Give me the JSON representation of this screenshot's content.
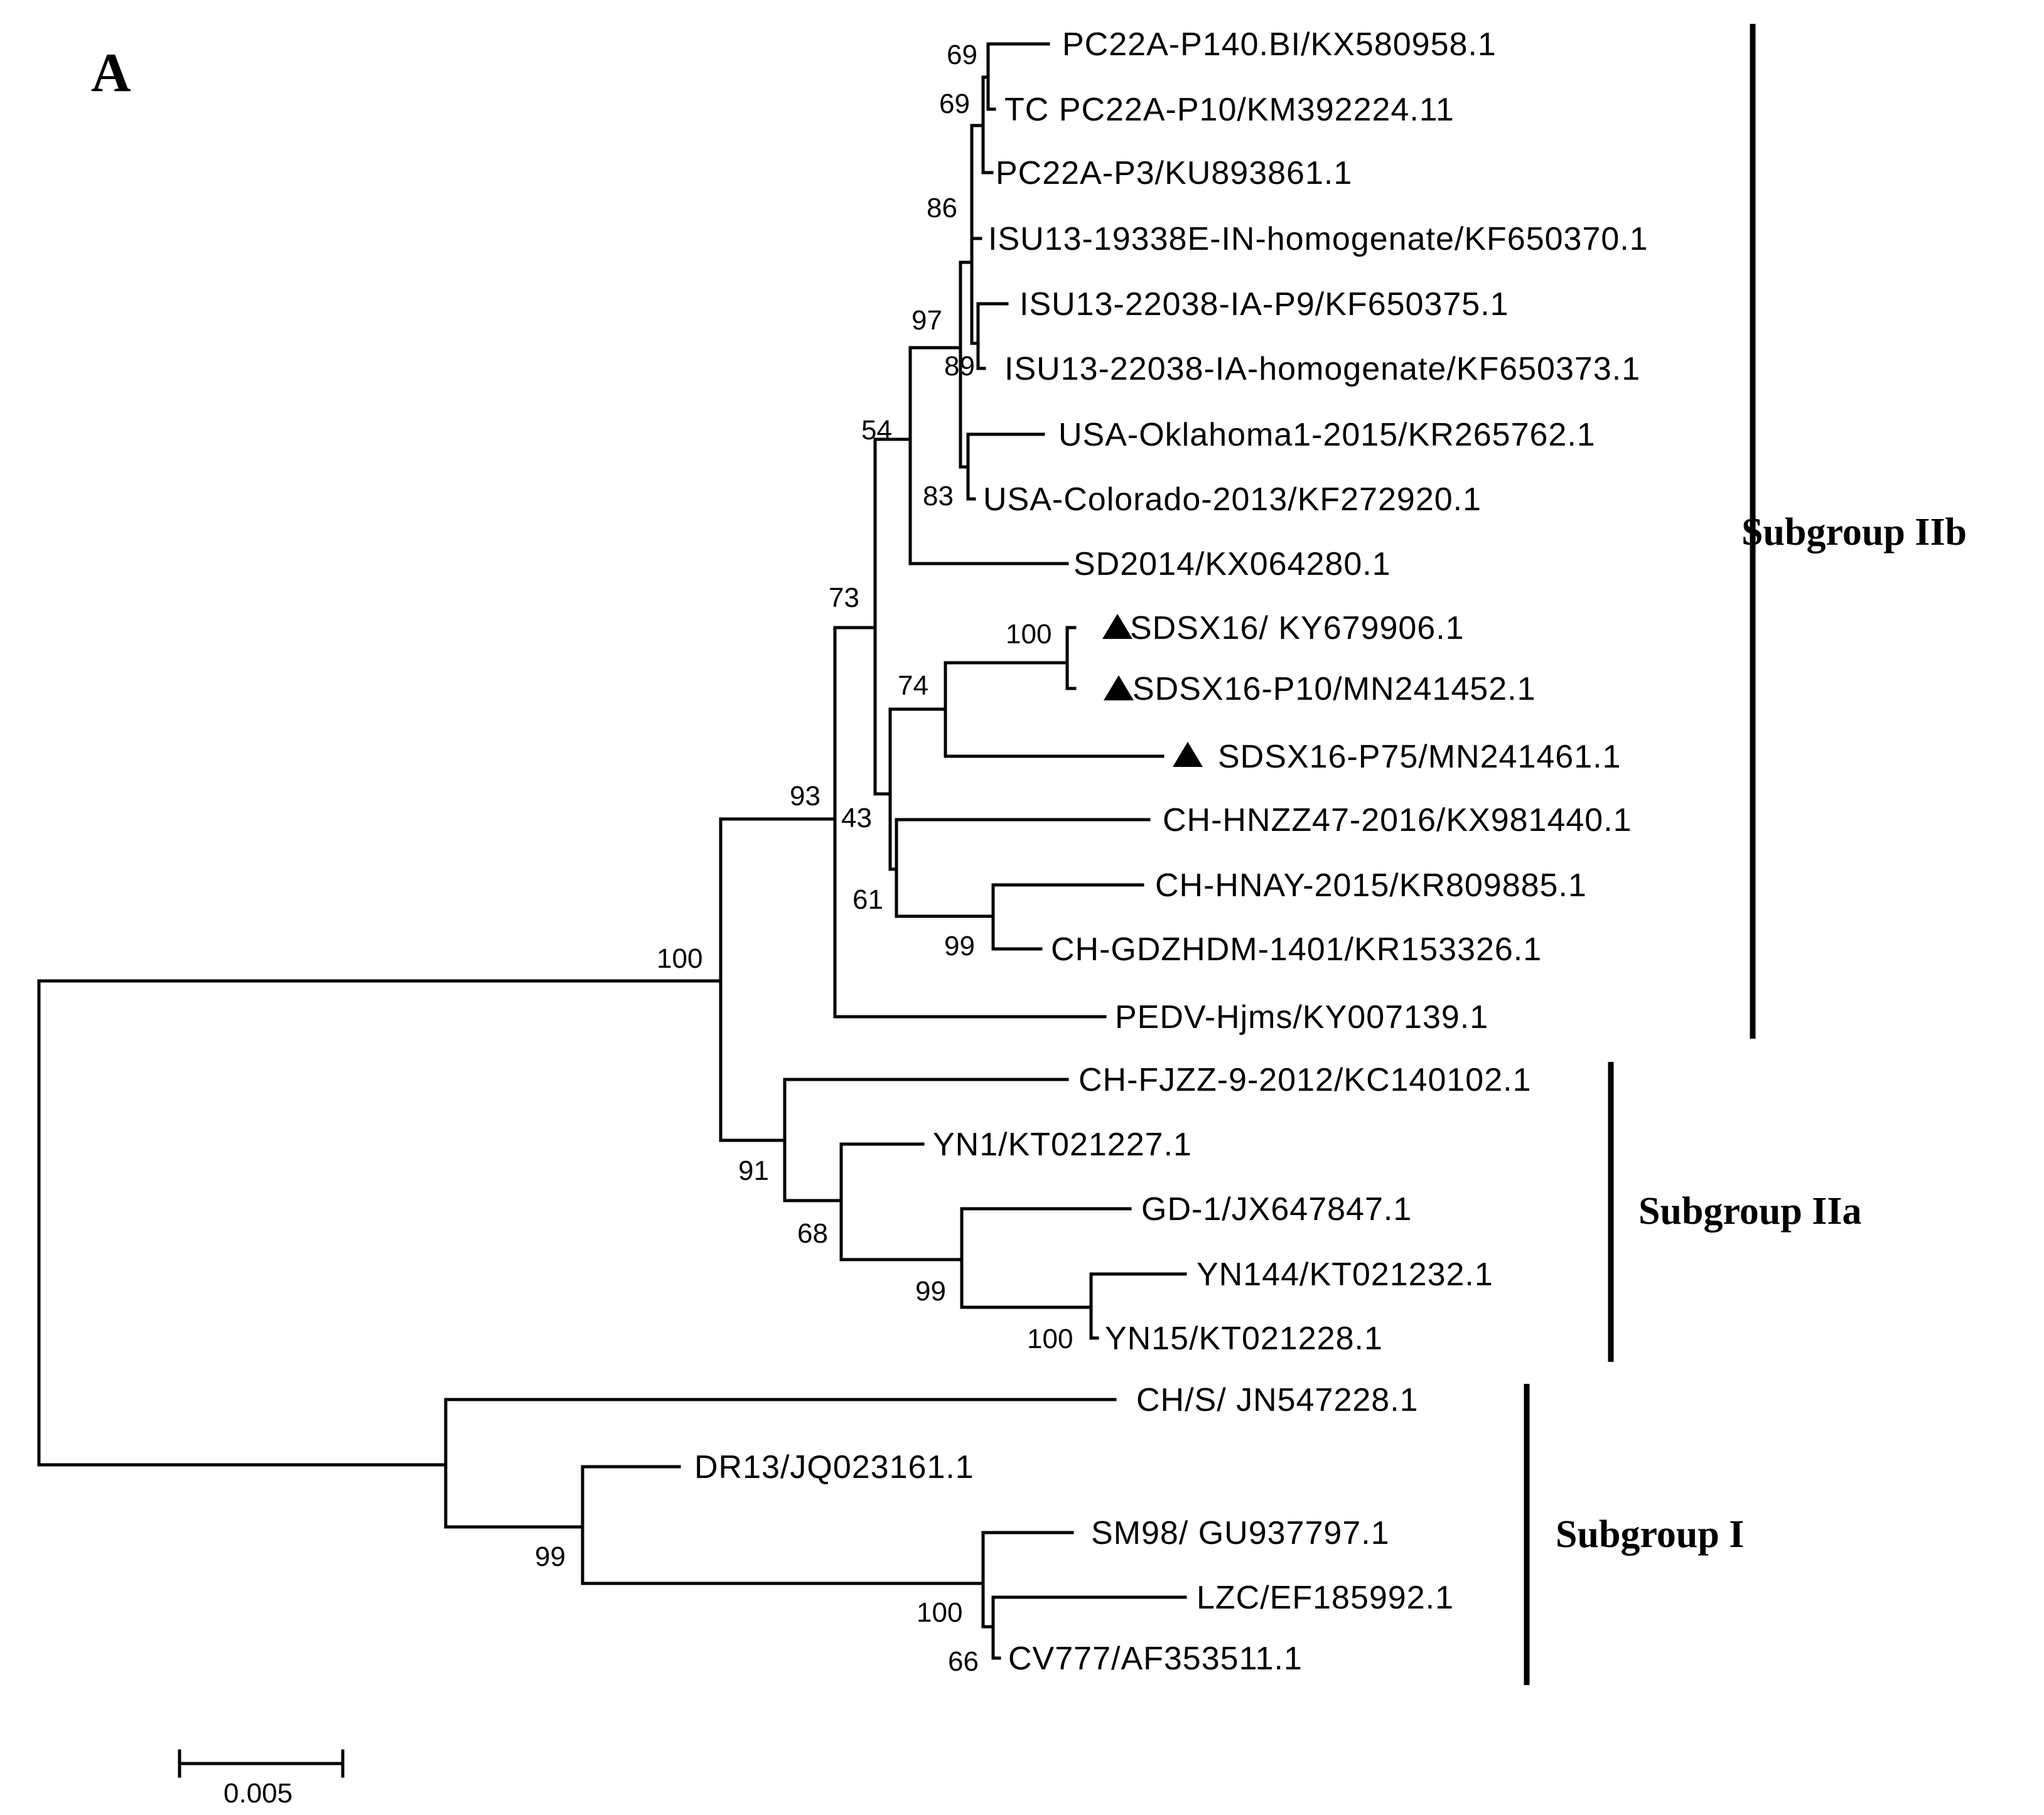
{
  "panel_label": "A",
  "taxa": [
    {
      "label": "PC22A-P140.BI/KX580958.1",
      "marked": false
    },
    {
      "label": "TC PC22A-P10/KM392224.11",
      "marked": false
    },
    {
      "label": "PC22A-P3/KU893861.1",
      "marked": false
    },
    {
      "label": "ISU13-19338E-IN-homogenate/KF650370.1",
      "marked": false
    },
    {
      "label": "ISU13-22038-IA-P9/KF650375.1",
      "marked": false
    },
    {
      "label": "ISU13-22038-IA-homogenate/KF650373.1",
      "marked": false
    },
    {
      "label": "USA-Oklahoma1-2015/KR265762.1",
      "marked": false
    },
    {
      "label": "USA-Colorado-2013/KF272920.1",
      "marked": false
    },
    {
      "label": "SD2014/KX064280.1",
      "marked": false
    },
    {
      "label": "SDSX16/ KY679906.1",
      "marked": true
    },
    {
      "label": "SDSX16-P10/MN241452.1",
      "marked": true
    },
    {
      "label": "SDSX16-P75/MN241461.1",
      "marked": true
    },
    {
      "label": "CH-HNZZ47-2016/KX981440.1",
      "marked": false
    },
    {
      "label": "CH-HNAY-2015/KR809885.1",
      "marked": false
    },
    {
      "label": "CH-GDZHDM-1401/KR153326.1",
      "marked": false
    },
    {
      "label": "PEDV-Hjms/KY007139.1",
      "marked": false
    },
    {
      "label": "CH-FJZZ-9-2012/KC140102.1",
      "marked": false
    },
    {
      "label": "YN1/KT021227.1",
      "marked": false
    },
    {
      "label": "GD-1/JX647847.1",
      "marked": false
    },
    {
      "label": "YN144/KT021232.1",
      "marked": false
    },
    {
      "label": "YN15/KT021228.1",
      "marked": false
    },
    {
      "label": "CH/S/ JN547228.1",
      "marked": false
    },
    {
      "label": "DR13/JQ023161.1",
      "marked": false
    },
    {
      "label": "SM98/ GU937797.1",
      "marked": false
    },
    {
      "label": "LZC/EF185992.1",
      "marked": false
    },
    {
      "label": "CV777/AF353511.1",
      "marked": false
    }
  ],
  "bootstrap_values": [
    "69",
    "69",
    "86",
    "97",
    "89",
    "54",
    "83",
    "73",
    "100",
    "74",
    "93",
    "43",
    "61",
    "99",
    "100",
    "91",
    "68",
    "99",
    "100",
    "99",
    "100",
    "66"
  ],
  "subgroups": [
    {
      "name": "Subgroup IIb"
    },
    {
      "name": "Subgroup IIa"
    },
    {
      "name": "Subgroup I"
    }
  ],
  "scale_bar": {
    "label": "0.005",
    "value": 0.005
  },
  "colors": {
    "ink": "#000000",
    "background": "#ffffff"
  }
}
